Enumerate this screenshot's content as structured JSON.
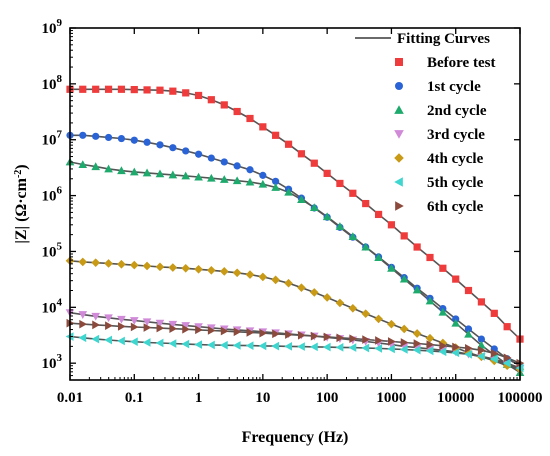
{
  "chart_data": {
    "type": "scatter",
    "xlabel": "Frequency (Hz)",
    "ylabel_main": "|Z| ",
    "ylabel_unit_pre": "(Ω·cm",
    "ylabel_unit_sup": "-2",
    "ylabel_unit_post": ")",
    "x_scale": "log",
    "y_scale": "log",
    "xlim": [
      0.01,
      100000
    ],
    "ylim": [
      500,
      1000000000
    ],
    "grid": false,
    "legend_position": "top-right",
    "x_ticks": [
      {
        "value": 0.01,
        "label": "0.01"
      },
      {
        "value": 0.1,
        "label": "0.1"
      },
      {
        "value": 1,
        "label": "1"
      },
      {
        "value": 10,
        "label": "10"
      },
      {
        "value": 100,
        "label": "100"
      },
      {
        "value": 1000,
        "label": "1000"
      },
      {
        "value": 10000,
        "label": "10000"
      },
      {
        "value": 100000,
        "label": "100000"
      }
    ],
    "y_ticks": [
      {
        "value": 1000,
        "base": "10",
        "exp": "3"
      },
      {
        "value": 10000,
        "base": "10",
        "exp": "4"
      },
      {
        "value": 100000,
        "base": "10",
        "exp": "5"
      },
      {
        "value": 1000000,
        "base": "10",
        "exp": "6"
      },
      {
        "value": 10000000,
        "base": "10",
        "exp": "7"
      },
      {
        "value": 100000000,
        "base": "10",
        "exp": "8"
      },
      {
        "value": 1000000000,
        "base": "10",
        "exp": "9"
      }
    ],
    "fit_line_color": "#555555",
    "fit_legend_label": "Fitting Curves",
    "series": [
      {
        "name": "Before test",
        "color": "#ee3b3b",
        "marker": "square",
        "x": [
          0.01,
          0.0158,
          0.0251,
          0.0398,
          0.0631,
          0.1,
          0.158,
          0.251,
          0.398,
          0.631,
          1,
          1.58,
          2.51,
          3.98,
          6.31,
          10,
          15.8,
          25.1,
          39.8,
          63.1,
          100,
          158,
          251,
          398,
          631,
          1000,
          1580,
          2510,
          3980,
          6310,
          10000,
          15800,
          25100,
          39800,
          63100,
          100000
        ],
        "y": [
          80000000,
          80000000,
          80000000,
          80000000,
          80000000,
          79000000,
          78000000,
          77000000,
          74000000,
          69000000,
          62000000,
          52000000,
          42000000,
          32000000,
          24000000,
          17000000,
          12000000,
          8300000,
          5600000,
          3800000,
          2500000,
          1650000,
          1100000,
          720000,
          460000,
          300000,
          190000,
          120000,
          78000,
          50000,
          32000,
          20000,
          12500,
          7800,
          4500,
          2700
        ]
      },
      {
        "name": "1st cycle",
        "color": "#2a63d6",
        "marker": "circle",
        "x": [
          0.01,
          0.0158,
          0.0251,
          0.0398,
          0.0631,
          0.1,
          0.158,
          0.251,
          0.398,
          0.631,
          1,
          1.58,
          2.51,
          3.98,
          6.31,
          10,
          15.8,
          25.1,
          39.8,
          63.1,
          100,
          158,
          251,
          398,
          631,
          1000,
          1580,
          2510,
          3980,
          6310,
          10000,
          15800,
          25100,
          39800,
          63100,
          100000
        ],
        "y": [
          12000000,
          12000000,
          11500000,
          11000000,
          10500000,
          9800000,
          9000000,
          8100000,
          7200000,
          6300000,
          5500000,
          4700000,
          4000000,
          3400000,
          2900000,
          2300000,
          1800000,
          1300000,
          900000,
          600000,
          410000,
          270000,
          180000,
          120000,
          80000,
          52000,
          34000,
          22000,
          14500,
          9500,
          6200,
          4100,
          2700,
          1800,
          1200,
          900
        ]
      },
      {
        "name": "2nd cycle",
        "color": "#1faa6d",
        "marker": "triangle-up",
        "x": [
          0.01,
          0.0158,
          0.0251,
          0.0398,
          0.0631,
          0.1,
          0.158,
          0.251,
          0.398,
          0.631,
          1,
          1.58,
          2.51,
          3.98,
          6.31,
          10,
          15.8,
          25.1,
          39.8,
          63.1,
          100,
          158,
          251,
          398,
          631,
          1000,
          1580,
          2510,
          3980,
          6310,
          10000,
          15800,
          25100,
          39800,
          63100,
          100000
        ],
        "y": [
          4000000,
          3600000,
          3300000,
          3000000,
          2800000,
          2650000,
          2550000,
          2450000,
          2350000,
          2250000,
          2150000,
          2050000,
          1950000,
          1850000,
          1750000,
          1600000,
          1400000,
          1150000,
          850000,
          610000,
          420000,
          280000,
          185000,
          120000,
          78000,
          50000,
          32000,
          20500,
          13000,
          8200,
          5200,
          3300,
          2100,
          1400,
          950,
          680
        ]
      },
      {
        "name": "3rd cycle",
        "color": "#d18ad8",
        "marker": "triangle-down",
        "x": [
          0.01,
          0.0158,
          0.0251,
          0.0398,
          0.0631,
          0.1,
          0.158,
          0.251,
          0.398,
          0.631,
          1,
          1.58,
          2.51,
          3.98,
          6.31,
          10,
          15.8,
          25.1,
          39.8,
          63.1,
          100,
          158,
          251,
          398,
          631,
          1000,
          1580,
          2510,
          3980,
          6310,
          10000,
          15800,
          25100,
          39800,
          63100,
          100000
        ],
        "y": [
          8000,
          7400,
          6900,
          6500,
          6100,
          5800,
          5500,
          5200,
          4950,
          4700,
          4500,
          4300,
          4100,
          3950,
          3800,
          3650,
          3500,
          3350,
          3200,
          3050,
          2900,
          2750,
          2600,
          2450,
          2300,
          2150,
          2000,
          1900,
          1800,
          1700,
          1600,
          1450,
          1300,
          1150,
          950,
          800
        ]
      },
      {
        "name": "4th cycle",
        "color": "#c89a16",
        "marker": "diamond",
        "x": [
          0.01,
          0.0158,
          0.0251,
          0.0398,
          0.0631,
          0.1,
          0.158,
          0.251,
          0.398,
          0.631,
          1,
          1.58,
          2.51,
          3.98,
          6.31,
          10,
          15.8,
          25.1,
          39.8,
          63.1,
          100,
          158,
          251,
          398,
          631,
          1000,
          1580,
          2510,
          3980,
          6310,
          10000,
          15800,
          25100,
          39800,
          63100,
          100000
        ],
        "y": [
          68000,
          65000,
          63000,
          61000,
          59000,
          57000,
          55000,
          53000,
          51500,
          50000,
          48000,
          46000,
          44000,
          41500,
          38500,
          35000,
          31000,
          27000,
          22500,
          18500,
          15000,
          12000,
          9600,
          7700,
          6200,
          5000,
          4100,
          3400,
          2800,
          2300,
          1900,
          1550,
          1300,
          1100,
          900,
          780
        ]
      },
      {
        "name": "5th cycle",
        "color": "#3fd6cf",
        "marker": "triangle-left",
        "x": [
          0.01,
          0.0158,
          0.0251,
          0.0398,
          0.0631,
          0.1,
          0.158,
          0.251,
          0.398,
          0.631,
          1,
          1.58,
          2.51,
          3.98,
          6.31,
          10,
          15.8,
          25.1,
          39.8,
          63.1,
          100,
          158,
          251,
          398,
          631,
          1000,
          1580,
          2510,
          3980,
          6310,
          10000,
          15800,
          25100,
          39800,
          63100,
          100000
        ],
        "y": [
          3000,
          2850,
          2700,
          2600,
          2500,
          2420,
          2350,
          2300,
          2250,
          2200,
          2150,
          2120,
          2100,
          2080,
          2060,
          2040,
          2020,
          2000,
          1980,
          1960,
          1940,
          1920,
          1900,
          1870,
          1840,
          1800,
          1760,
          1710,
          1660,
          1600,
          1530,
          1440,
          1330,
          1180,
          1000,
          820
        ]
      },
      {
        "name": "6th cycle",
        "color": "#8b4a3c",
        "marker": "triangle-right",
        "x": [
          0.01,
          0.0158,
          0.0251,
          0.0398,
          0.0631,
          0.1,
          0.158,
          0.251,
          0.398,
          0.631,
          1,
          1.58,
          2.51,
          3.98,
          6.31,
          10,
          15.8,
          25.1,
          39.8,
          63.1,
          100,
          158,
          251,
          398,
          631,
          1000,
          1580,
          2510,
          3980,
          6310,
          10000,
          15800,
          25100,
          39800,
          63100,
          100000
        ],
        "y": [
          5200,
          5000,
          4850,
          4700,
          4550,
          4450,
          4350,
          4250,
          4150,
          4050,
          3950,
          3850,
          3750,
          3650,
          3550,
          3450,
          3350,
          3250,
          3150,
          3050,
          2950,
          2850,
          2750,
          2650,
          2550,
          2450,
          2350,
          2250,
          2150,
          2050,
          1950,
          1850,
          1700,
          1500,
          1250,
          1000
        ]
      }
    ]
  }
}
